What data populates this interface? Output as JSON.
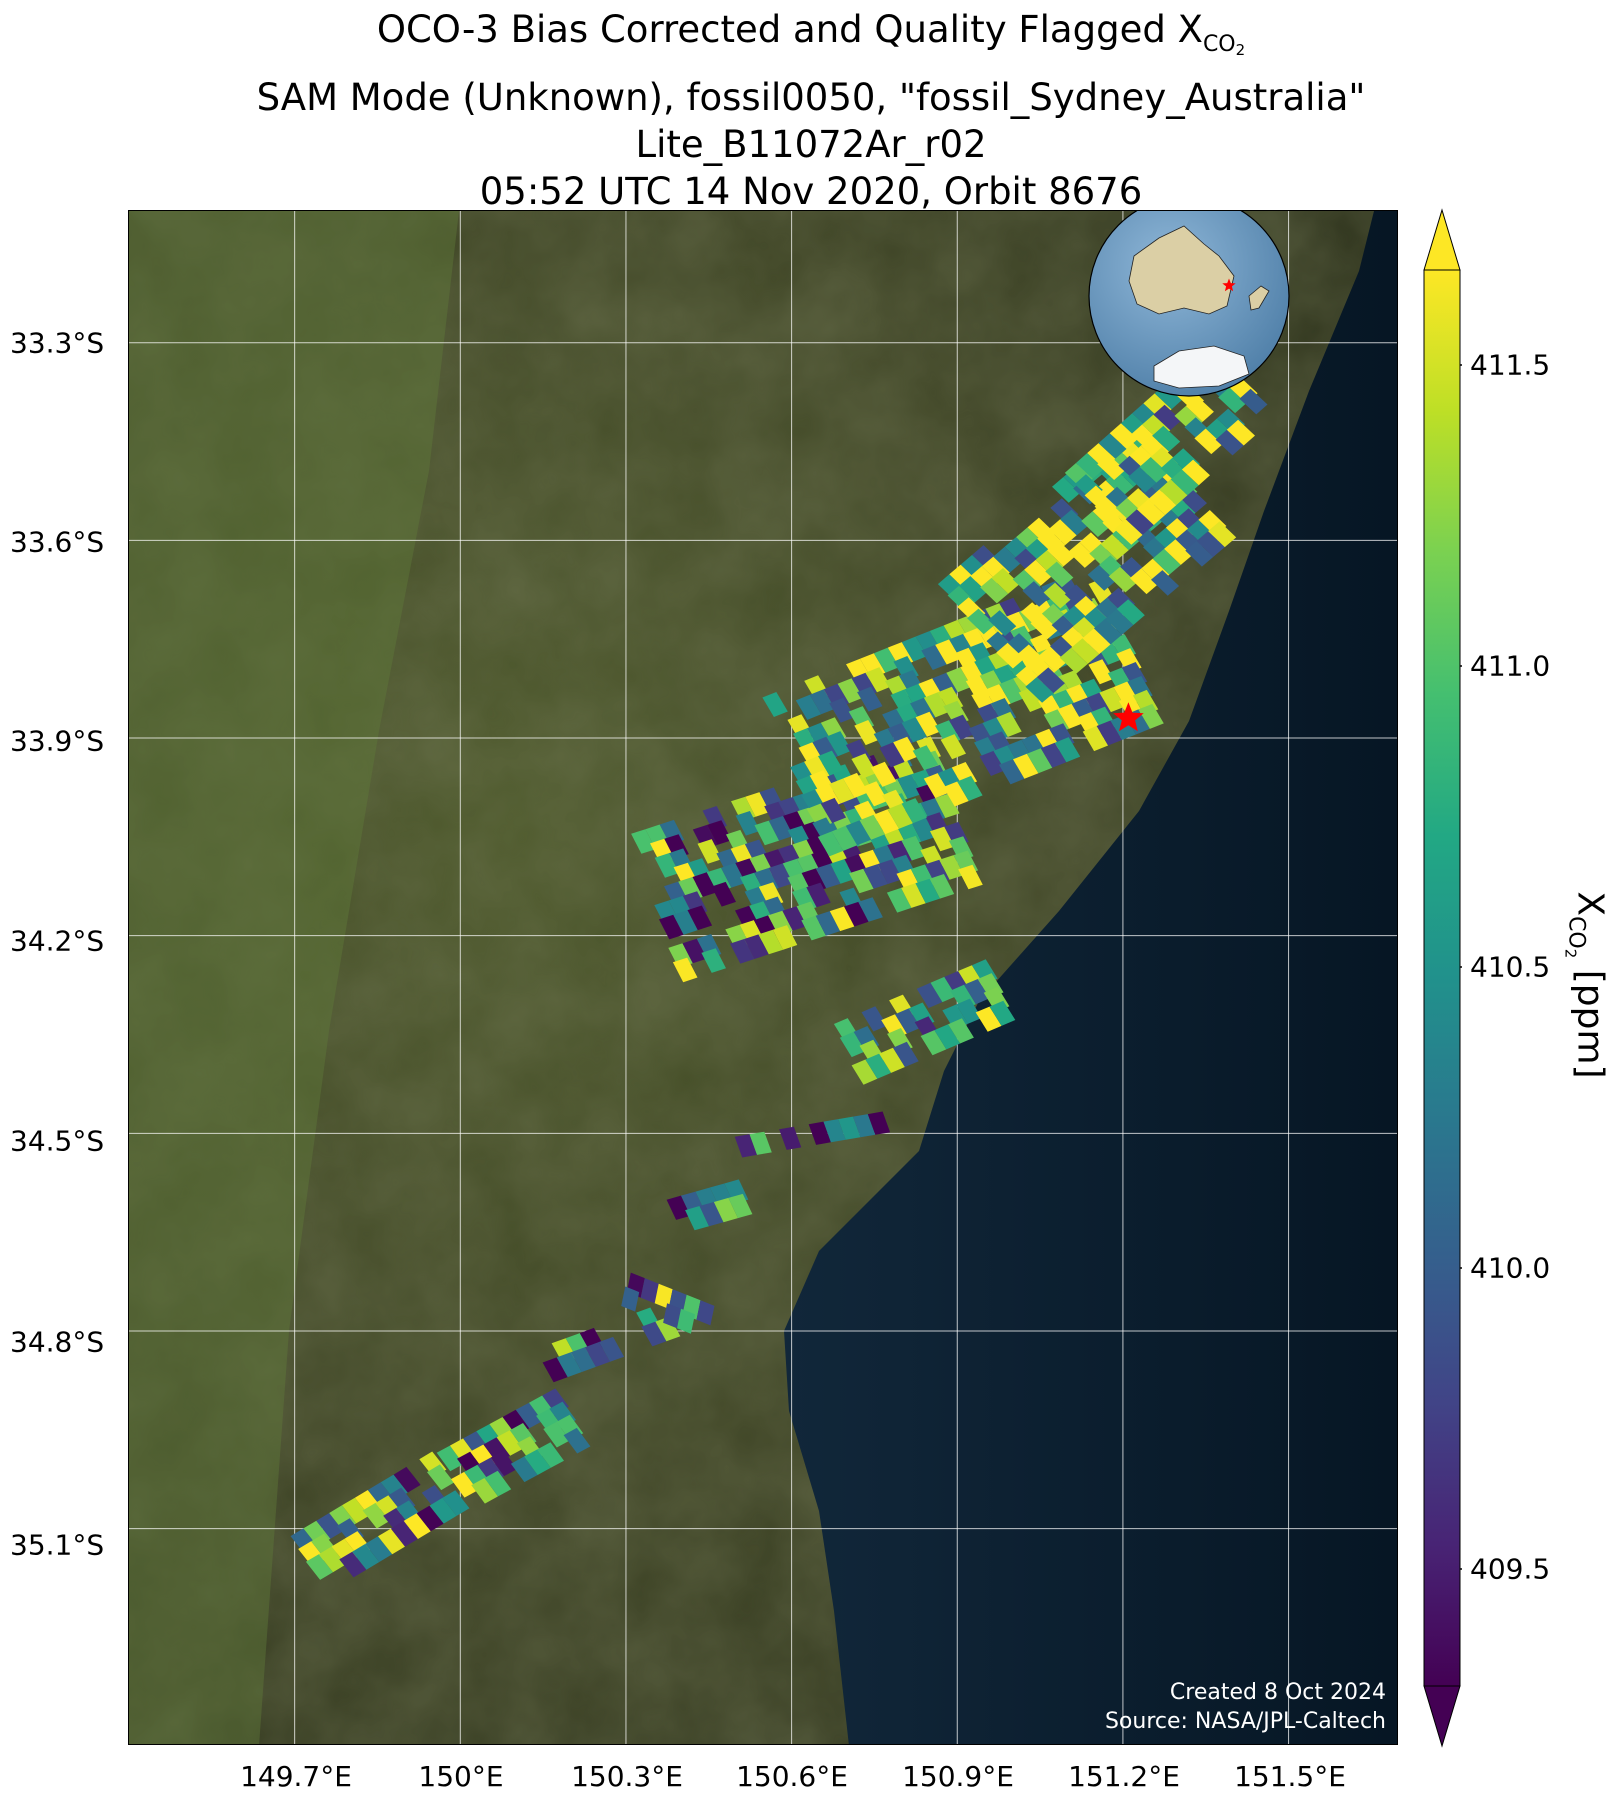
{
  "title": {
    "line1_prefix": "OCO-3 Bias Corrected and Quality Flagged X",
    "line1_sub": "CO",
    "line1_subsub": "2",
    "line2": "SAM Mode (Unknown), fossil0050, \"fossil_Sydney_Australia\"",
    "line3": "Lite_B11072Ar_r02",
    "line4": "05:52 UTC 14 Nov 2020, Orbit 8676"
  },
  "map": {
    "lat_ticks": [
      "33.3°S",
      "33.6°S",
      "33.9°S",
      "34.2°S",
      "34.5°S",
      "34.8°S",
      "35.1°S"
    ],
    "lat_values": [
      -33.3,
      -33.6,
      -33.9,
      -34.2,
      -34.5,
      -34.8,
      -35.1
    ],
    "lon_ticks": [
      "149.7°E",
      "150°E",
      "150.3°E",
      "150.6°E",
      "150.9°E",
      "151.2°E",
      "151.5°E"
    ],
    "lon_values": [
      149.7,
      150.0,
      150.3,
      150.6,
      150.9,
      151.2,
      151.5
    ],
    "lon_range": [
      149.4,
      151.7
    ],
    "lat_range": [
      -35.43,
      -33.1
    ],
    "target_marker": {
      "lon": 151.21,
      "lat": -33.87,
      "color": "#ff0000",
      "shape": "star"
    },
    "basemap": "satellite imagery",
    "inset_globe": "Australia orthographic locator with red star"
  },
  "credits": {
    "created": "Created 8 Oct 2024",
    "source": "Source: NASA/JPL-Caltech"
  },
  "colorbar": {
    "colormap": "viridis",
    "ticks": [
      "409.5",
      "410.0",
      "410.5",
      "411.0",
      "411.5"
    ],
    "tick_values": [
      409.5,
      410.0,
      410.5,
      411.0,
      411.5
    ],
    "range": [
      409.3,
      411.65
    ],
    "extend": "both",
    "label_prefix": "X",
    "label_sub": "CO",
    "label_subsub": "2",
    "label_suffix": " [ppm]"
  },
  "chart_data": {
    "type": "scatter",
    "title": "OCO-3 Bias Corrected and Quality Flagged XCO2",
    "xlabel": "",
    "ylabel": "",
    "xlim": [
      149.4,
      151.7
    ],
    "ylim": [
      -35.43,
      -33.1
    ],
    "grid": true,
    "color_variable": "XCO2 [ppm]",
    "color_range": [
      409.3,
      411.65
    ],
    "swath_segments": [
      {
        "lon_start": 149.72,
        "lat_start": -35.15,
        "lon_end": 149.98,
        "lat_end": -35.02,
        "width": 0.09,
        "mean_xco2": 410.6
      },
      {
        "lon_start": 149.98,
        "lat_start": -35.02,
        "lon_end": 150.2,
        "lat_end": -34.92,
        "width": 0.08,
        "mean_xco2": 410.5
      },
      {
        "lon_start": 150.15,
        "lat_start": -34.85,
        "lon_end": 150.38,
        "lat_end": -34.78,
        "width": 0.05,
        "mean_xco2": 410.2
      },
      {
        "lon_start": 150.3,
        "lat_start": -34.73,
        "lon_end": 150.45,
        "lat_end": -34.78,
        "width": 0.04,
        "mean_xco2": 410.4
      },
      {
        "lon_start": 150.38,
        "lat_start": -34.62,
        "lon_end": 150.55,
        "lat_end": -34.58,
        "width": 0.04,
        "mean_xco2": 410.1
      },
      {
        "lon_start": 150.5,
        "lat_start": -34.52,
        "lon_end": 150.78,
        "lat_end": -34.48,
        "width": 0.03,
        "mean_xco2": 409.8
      },
      {
        "lon_start": 150.7,
        "lat_start": -34.38,
        "lon_end": 150.98,
        "lat_end": -34.28,
        "width": 0.1,
        "mean_xco2": 410.7
      },
      {
        "lon_start": 150.35,
        "lat_start": -34.15,
        "lon_end": 150.9,
        "lat_end": -34.0,
        "width": 0.22,
        "mean_xco2": 410.4
      },
      {
        "lon_start": 150.6,
        "lat_start": -33.95,
        "lon_end": 151.2,
        "lat_end": -33.75,
        "width": 0.24,
        "mean_xco2": 411.0
      },
      {
        "lon_start": 150.95,
        "lat_start": -33.75,
        "lon_end": 151.3,
        "lat_end": -33.5,
        "width": 0.22,
        "mean_xco2": 411.1
      },
      {
        "lon_start": 151.15,
        "lat_start": -33.55,
        "lon_end": 151.42,
        "lat_end": -33.35,
        "width": 0.14,
        "mean_xco2": 411.0
      }
    ]
  }
}
